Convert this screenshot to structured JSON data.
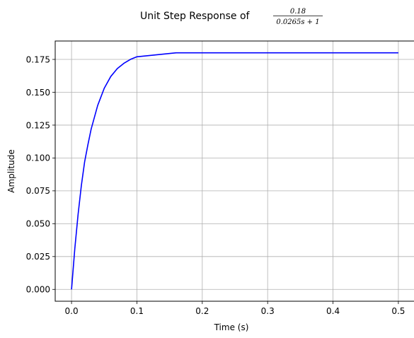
{
  "chart_data": {
    "type": "line",
    "title_prefix": "Unit Step Response of",
    "transfer_function": {
      "numerator": "0.18",
      "denominator": "0.0265s + 1"
    },
    "xlabel": "Time (s)",
    "ylabel": "Amplitude",
    "xlim": [
      -0.025,
      0.525
    ],
    "ylim": [
      -0.009,
      0.189
    ],
    "xticks": [
      0.0,
      0.1,
      0.2,
      0.3,
      0.4,
      0.5
    ],
    "xtick_labels": [
      "0.0",
      "0.1",
      "0.2",
      "0.3",
      "0.4",
      "0.5"
    ],
    "yticks": [
      0.0,
      0.025,
      0.05,
      0.075,
      0.1,
      0.125,
      0.15,
      0.175
    ],
    "ytick_labels": [
      "0.000",
      "0.025",
      "0.050",
      "0.075",
      "0.100",
      "0.125",
      "0.150",
      "0.175"
    ],
    "grid": true,
    "series": [
      {
        "color": "#0000ff",
        "x": [
          0.0,
          0.005,
          0.01,
          0.015,
          0.02,
          0.025,
          0.03,
          0.04,
          0.05,
          0.06,
          0.07,
          0.08,
          0.09,
          0.1,
          0.12,
          0.14,
          0.16,
          0.18,
          0.2,
          0.25,
          0.3,
          0.35,
          0.4,
          0.45,
          0.5
        ],
        "y": [
          0.0,
          0.031,
          0.057,
          0.079,
          0.097,
          0.11,
          0.122,
          0.14,
          0.153,
          0.162,
          0.168,
          0.172,
          0.175,
          0.177,
          0.178,
          0.179,
          0.18,
          0.18,
          0.18,
          0.18,
          0.18,
          0.18,
          0.18,
          0.18,
          0.18
        ]
      }
    ]
  }
}
